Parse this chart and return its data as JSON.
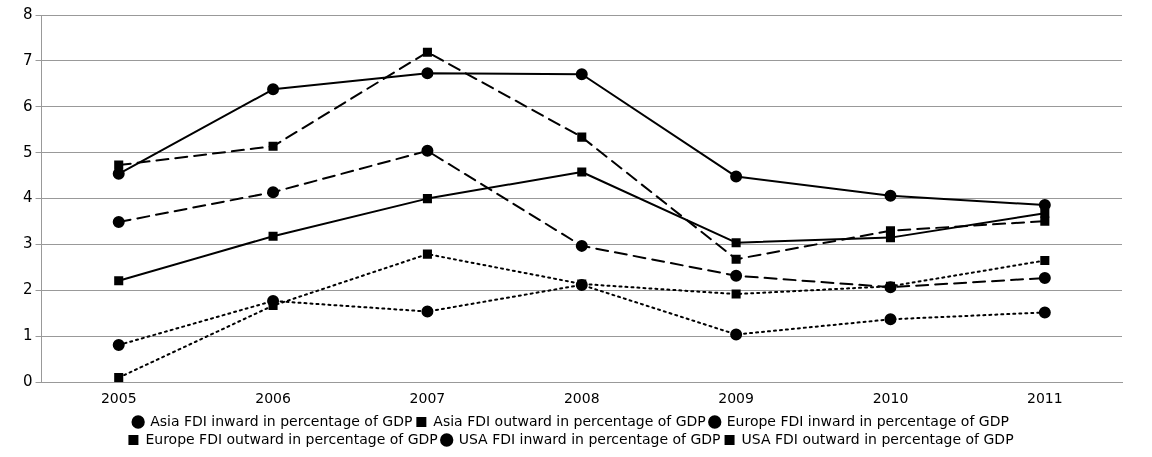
{
  "chart_data": {
    "type": "line",
    "categories": [
      "2005",
      "2006",
      "2007",
      "2008",
      "2009",
      "2010",
      "2011"
    ],
    "ylim": [
      0,
      8
    ],
    "yticks": [
      0,
      1,
      2,
      3,
      4,
      5,
      6,
      7,
      8
    ],
    "grid": "y",
    "legend": "bottom",
    "series": [
      {
        "name": "Asia FDI inward in percentage of GDP",
        "color": "#000000",
        "marker": "circle",
        "line_style": "solid",
        "values": [
          4.54,
          6.38,
          6.73,
          6.71,
          4.48,
          4.06,
          3.86
        ]
      },
      {
        "name": "Asia FDI outward in percentage of GDP",
        "color": "#000000",
        "marker": "square",
        "line_style": "solid",
        "values": [
          2.21,
          3.18,
          4.0,
          4.58,
          3.04,
          3.15,
          3.68
        ]
      },
      {
        "name": "Europe FDI inward in percentage of GDP",
        "color": "#000000",
        "marker": "circle",
        "line_style": "dashed",
        "values": [
          3.49,
          4.14,
          5.04,
          2.97,
          2.32,
          2.07,
          2.27
        ]
      },
      {
        "name": "Europe FDI outward in percentage of GDP",
        "color": "#000000",
        "marker": "square",
        "line_style": "dashed",
        "values": [
          4.73,
          5.14,
          7.19,
          5.34,
          2.68,
          3.3,
          3.51
        ]
      },
      {
        "name": "USA FDI inward in percentage of GDP",
        "color": "#000000",
        "marker": "circle",
        "line_style": "dotted",
        "values": [
          0.81,
          1.77,
          1.54,
          2.12,
          1.04,
          1.37,
          1.52
        ]
      },
      {
        "name": "USA FDI outward in percentage of GDP",
        "color": "#000000",
        "marker": "square",
        "line_style": "dotted",
        "values": [
          0.1,
          1.67,
          2.79,
          2.14,
          1.92,
          2.09,
          2.65
        ]
      }
    ]
  }
}
